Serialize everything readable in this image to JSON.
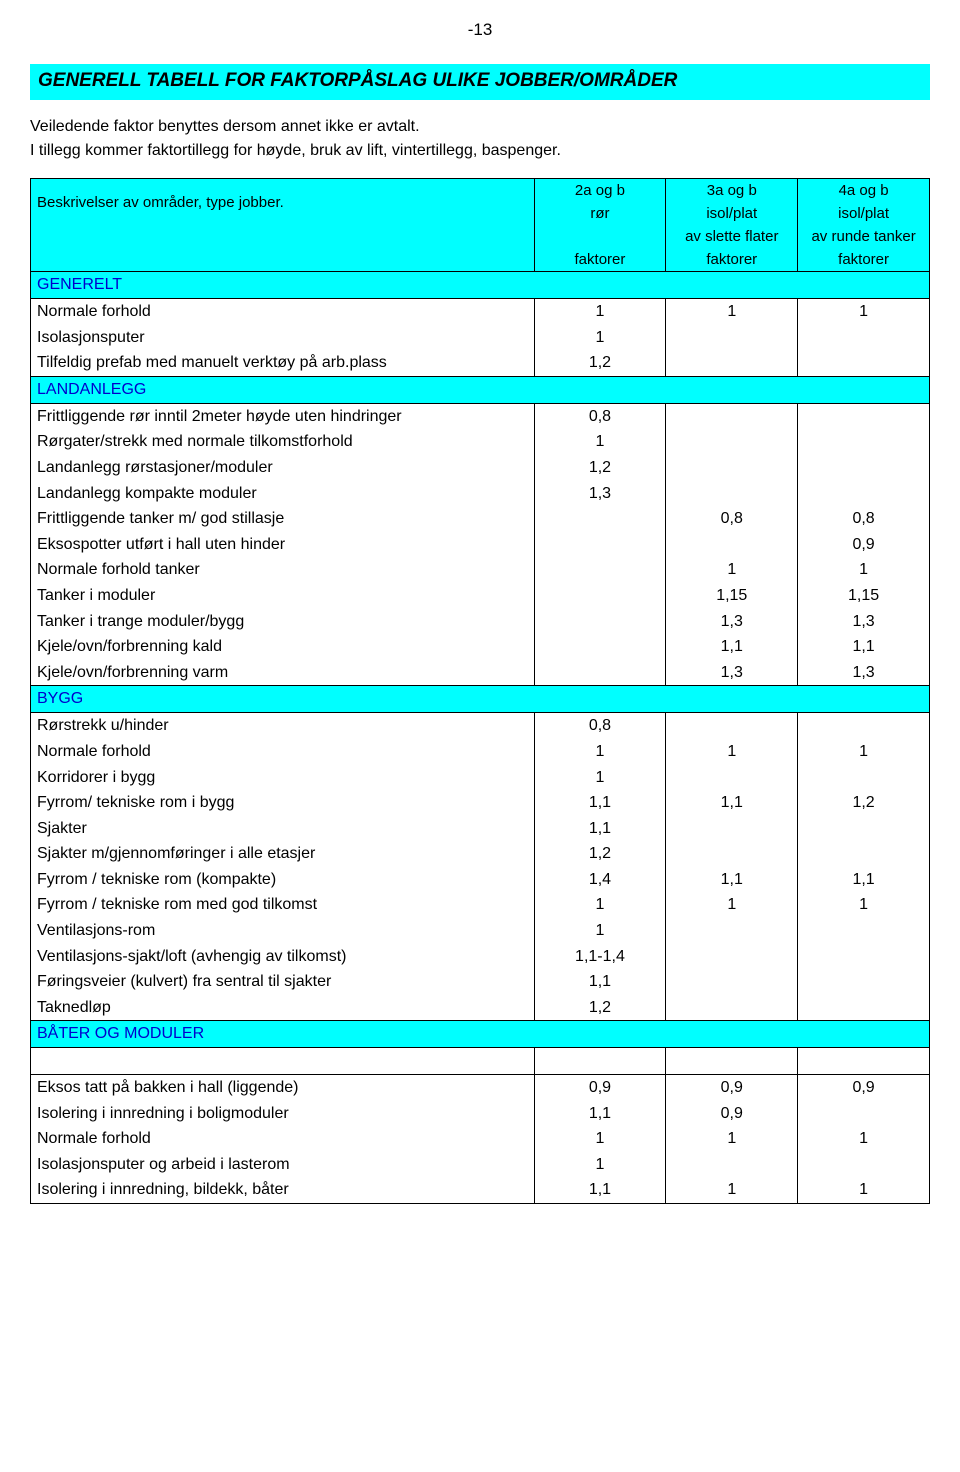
{
  "page_number": "-13",
  "title": "GENERELL TABELL FOR FAKTORPÅSLAG ULIKE JOBBER/OMRÅDER",
  "intro_line1": "Veiledende faktor benyttes dersom annet ikke er avtalt.",
  "intro_line2": "I tillegg kommer faktortillegg for høyde, bruk av lift, vintertillegg, baspenger.",
  "header": {
    "desc_label": "Beskrivelser av områder, type jobber.",
    "col1_top": "2a og b",
    "col2_top": "3a og b",
    "col3_top": "4a og b",
    "col1_mid": "rør",
    "col2_mid": "isol/plat",
    "col3_mid": "isol/plat",
    "col2_mid2": "av slette flater",
    "col3_mid2": "av runde tanker",
    "bottom": "faktorer"
  },
  "sections": [
    {
      "title": "GENERELT",
      "rows": [
        {
          "desc": "Normale forhold",
          "v": [
            "1",
            "1",
            "1"
          ]
        },
        {
          "desc": "Isolasjonsputer",
          "v": [
            "1",
            "",
            ""
          ]
        },
        {
          "desc": "Tilfeldig prefab med manuelt verktøy på arb.plass",
          "v": [
            "1,2",
            "",
            ""
          ]
        }
      ]
    },
    {
      "title": "LANDANLEGG",
      "rows": [
        {
          "desc": "Frittliggende rør inntil 2meter høyde uten hindringer",
          "v": [
            "0,8",
            "",
            ""
          ]
        },
        {
          "desc": "Rørgater/strekk med normale tilkomstforhold",
          "v": [
            "1",
            "",
            ""
          ]
        },
        {
          "desc": "Landanlegg rørstasjoner/moduler",
          "v": [
            "1,2",
            "",
            ""
          ]
        },
        {
          "desc": "Landanlegg kompakte moduler",
          "v": [
            "1,3",
            "",
            ""
          ]
        },
        {
          "desc": "Frittliggende tanker m/ god stillasje",
          "v": [
            "",
            "0,8",
            "0,8"
          ]
        },
        {
          "desc": "Eksospotter utført i hall uten hinder",
          "v": [
            "",
            "",
            "0,9"
          ]
        },
        {
          "desc": "Normale forhold tanker",
          "v": [
            "",
            "1",
            "1"
          ]
        },
        {
          "desc": "Tanker i moduler",
          "v": [
            "",
            "1,15",
            "1,15"
          ]
        },
        {
          "desc": "Tanker i trange moduler/bygg",
          "v": [
            "",
            "1,3",
            "1,3"
          ]
        },
        {
          "desc": "Kjele/ovn/forbrenning kald",
          "v": [
            "",
            "1,1",
            "1,1"
          ]
        },
        {
          "desc": "Kjele/ovn/forbrenning varm",
          "v": [
            "",
            "1,3",
            "1,3"
          ]
        }
      ]
    },
    {
      "title": "BYGG",
      "rows": [
        {
          "desc": "Rørstrekk u/hinder",
          "v": [
            "0,8",
            "",
            ""
          ]
        },
        {
          "desc": "Normale forhold",
          "v": [
            "1",
            "1",
            "1"
          ]
        },
        {
          "desc": "Korridorer i bygg",
          "v": [
            "1",
            "",
            ""
          ]
        },
        {
          "desc": "Fyrrom/ tekniske rom i bygg",
          "v": [
            "1,1",
            "1,1",
            "1,2"
          ]
        },
        {
          "desc": "Sjakter",
          "v": [
            "1,1",
            "",
            ""
          ]
        },
        {
          "desc": "Sjakter m/gjennomføringer i alle etasjer",
          "v": [
            "1,2",
            "",
            ""
          ]
        },
        {
          "desc": "Fyrrom / tekniske rom (kompakte)",
          "v": [
            "1,4",
            "1,1",
            "1,1"
          ]
        },
        {
          "desc": "Fyrrom / tekniske rom med god tilkomst",
          "v": [
            "1",
            "1",
            "1"
          ]
        },
        {
          "desc": "Ventilasjons-rom",
          "v": [
            "1",
            "",
            ""
          ]
        },
        {
          "desc": "Ventilasjons-sjakt/loft (avhengig av tilkomst)",
          "v": [
            "1,1-1,4",
            "",
            ""
          ]
        },
        {
          "desc": "Føringsveier (kulvert) fra sentral til sjakter",
          "v": [
            "1,1",
            "",
            ""
          ]
        },
        {
          "desc": "Taknedløp",
          "v": [
            "1,2",
            "",
            ""
          ]
        }
      ]
    },
    {
      "title": "BÅTER OG MODULER",
      "blank_after_title": true,
      "rows": [
        {
          "desc": "Eksos tatt på bakken i hall (liggende)",
          "v": [
            "0,9",
            "0,9",
            "0,9"
          ]
        },
        {
          "desc": "Isolering i innredning i boligmoduler",
          "v": [
            "1,1",
            "0,9",
            ""
          ]
        },
        {
          "desc": "Normale forhold",
          "v": [
            "1",
            "1",
            "1"
          ]
        },
        {
          "desc": "Isolasjonsputer og arbeid i lasterom",
          "v": [
            "1",
            "",
            ""
          ]
        },
        {
          "desc": "Isolering i innredning, bildekk, båter",
          "v": [
            "1,1",
            "1",
            "1"
          ]
        }
      ]
    }
  ],
  "colors": {
    "highlight": "#00ffff",
    "section_text": "#0000cc",
    "border": "#000000",
    "background": "#ffffff"
  }
}
